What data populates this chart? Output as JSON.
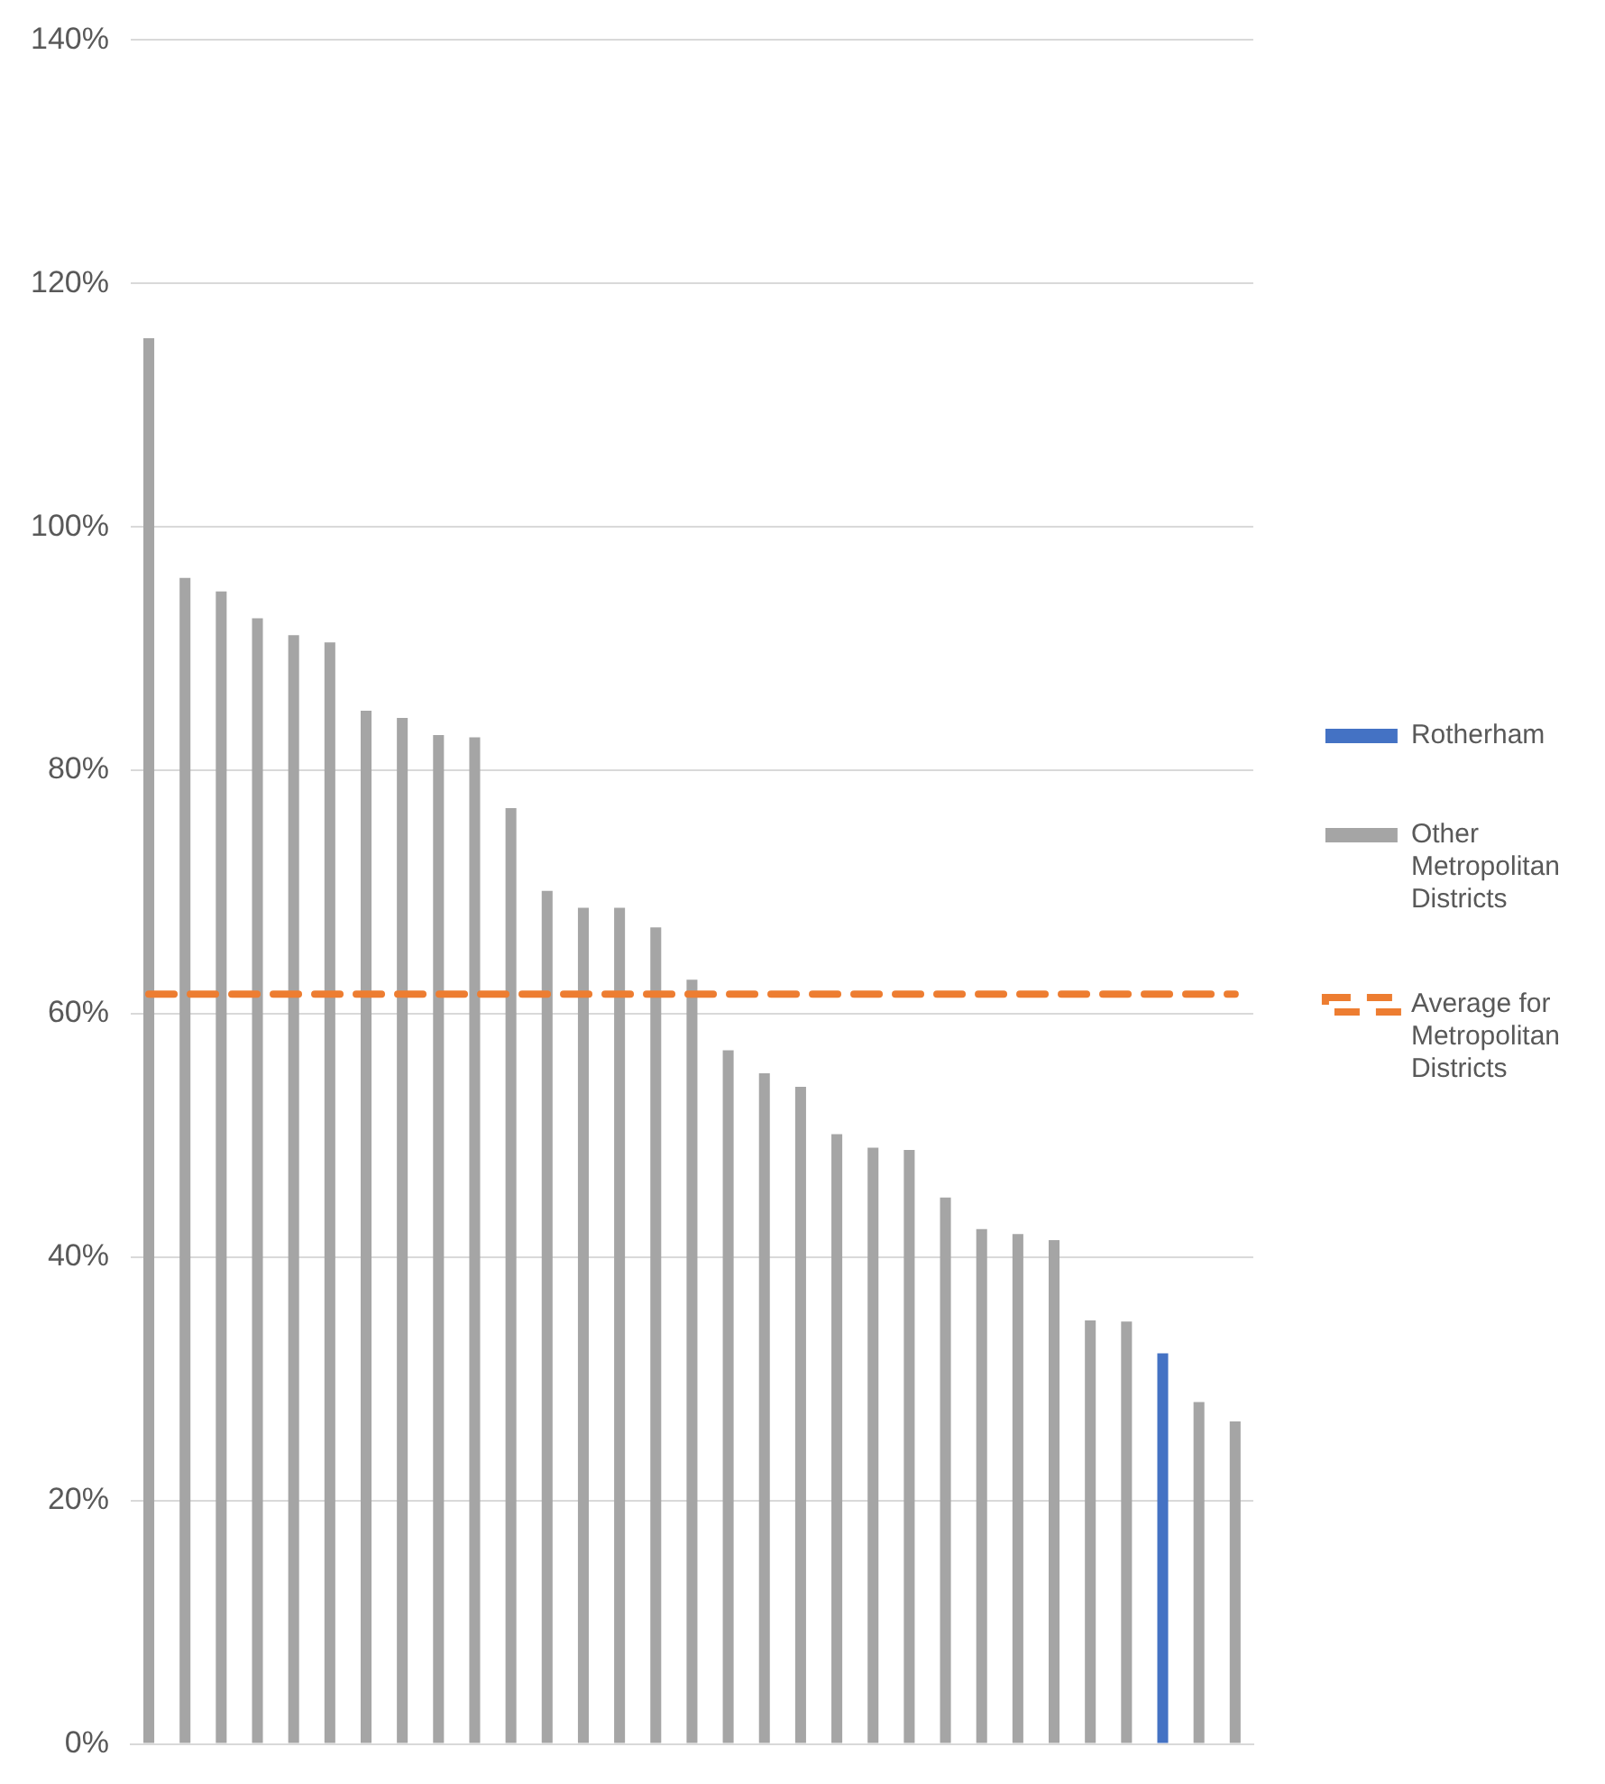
{
  "chart_data": {
    "type": "bar",
    "categories": [
      null,
      null,
      null,
      null,
      null,
      null,
      null,
      null,
      null,
      null,
      null,
      null,
      null,
      null,
      null,
      null,
      null,
      null,
      null,
      null,
      null,
      null,
      null,
      null,
      null,
      null,
      null,
      null,
      null,
      null,
      null
    ],
    "series": [
      {
        "name": "Rotherham",
        "color": "#4472c4",
        "values": [
          null,
          null,
          null,
          null,
          null,
          null,
          null,
          null,
          null,
          null,
          null,
          null,
          null,
          null,
          null,
          null,
          null,
          null,
          null,
          null,
          null,
          null,
          null,
          null,
          null,
          null,
          null,
          null,
          32.1,
          null,
          null
        ]
      },
      {
        "name": "Other Metropolitan Districts",
        "color": "#a5a5a5",
        "values": [
          115.5,
          95.8,
          94.7,
          92.5,
          91.1,
          90.5,
          84.9,
          84.3,
          82.9,
          82.7,
          76.9,
          70.1,
          68.7,
          68.7,
          67.1,
          62.8,
          57.0,
          55.1,
          54.0,
          50.1,
          49.0,
          48.8,
          44.9,
          42.3,
          41.9,
          41.4,
          34.8,
          34.7,
          null,
          28.1,
          26.5
        ]
      },
      {
        "name": "Average for Metropolitan Districts",
        "type": "line",
        "color": "#ed7d31",
        "line_style": "dashed",
        "values": [
          61.6,
          61.6,
          61.6,
          61.6,
          61.6,
          61.6,
          61.6,
          61.6,
          61.6,
          61.6,
          61.6,
          61.6,
          61.6,
          61.6,
          61.6,
          61.6,
          61.6,
          61.6,
          61.6,
          61.6,
          61.6,
          61.6,
          61.6,
          61.6,
          61.6,
          61.6,
          61.6,
          61.6,
          61.6,
          61.6,
          61.6
        ]
      }
    ],
    "stacked": true,
    "ylim": [
      0,
      140
    ],
    "yticks": [
      {
        "value": 0,
        "label": "0%"
      },
      {
        "value": 20,
        "label": "20%"
      },
      {
        "value": 40,
        "label": "40%"
      },
      {
        "value": 60,
        "label": "60%"
      },
      {
        "value": 80,
        "label": "80%"
      },
      {
        "value": 100,
        "label": "100%"
      },
      {
        "value": 120,
        "label": "120%"
      },
      {
        "value": 140,
        "label": "140%"
      }
    ],
    "grid": "y",
    "legend": "right",
    "tick_labels": "y",
    "marker": "none"
  }
}
